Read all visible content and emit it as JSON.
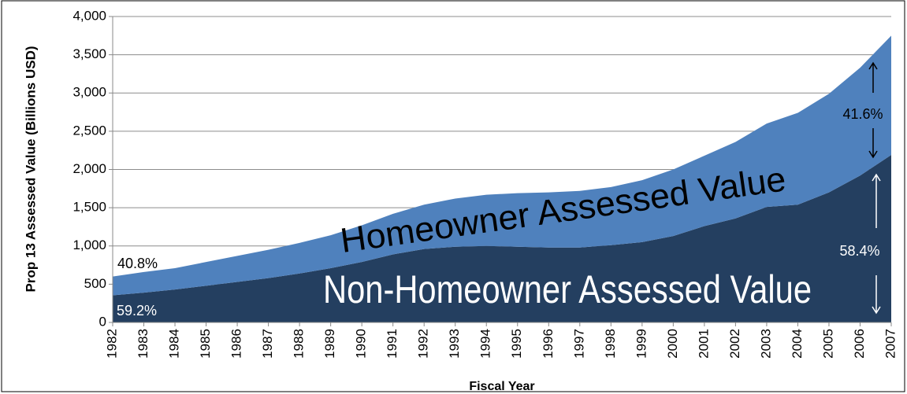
{
  "chart_data": {
    "type": "stacked-area",
    "x_label": "Fiscal Year",
    "y_label": "Prop 13 Assessed Value (Billions USD)",
    "categories": [
      "1982",
      "1983",
      "1984",
      "1985",
      "1986",
      "1987",
      "1988",
      "1989",
      "1990",
      "1991",
      "1992",
      "1993",
      "1994",
      "1995",
      "1996",
      "1997",
      "1998",
      "1999",
      "2000",
      "2001",
      "2002",
      "2003",
      "2004",
      "2005",
      "2006",
      "2007"
    ],
    "series": [
      {
        "name": "Non-Homeowner Assessed Value",
        "color": "#243f60",
        "values": [
          355,
          390,
          430,
          480,
          530,
          580,
          640,
          710,
          790,
          890,
          960,
          990,
          1000,
          990,
          980,
          980,
          1010,
          1050,
          1130,
          1260,
          1360,
          1510,
          1540,
          1700,
          1920,
          2190
        ]
      },
      {
        "name": "Homeowner Assessed Value",
        "color": "#4f81bd",
        "values": [
          245,
          270,
          280,
          310,
          340,
          370,
          400,
          430,
          480,
          530,
          580,
          630,
          670,
          700,
          720,
          740,
          760,
          810,
          870,
          920,
          1000,
          1090,
          1200,
          1290,
          1410,
          1560
        ]
      }
    ],
    "ylim": [
      0,
      4000
    ],
    "yticks": [
      0,
      500,
      {
        "value": 1000,
        "label": "1,000"
      },
      {
        "value": 1500,
        "label": "1,500"
      },
      {
        "value": 2000,
        "label": "2,000"
      },
      {
        "value": 2500,
        "label": "2,500"
      },
      {
        "value": 3000,
        "label": "3,000"
      },
      {
        "value": 3500,
        "label": "3,500"
      },
      {
        "value": 4000,
        "label": "4,000"
      }
    ],
    "grid": true,
    "annotations": [
      "40.8%",
      "59.2%",
      "41.6%",
      "58.4%"
    ]
  }
}
